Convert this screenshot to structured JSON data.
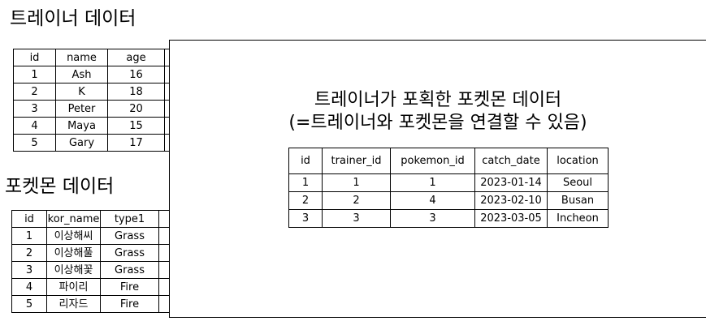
{
  "trainer": {
    "heading": "트레이너 데이터",
    "columns": [
      "id",
      "name",
      "age",
      ""
    ],
    "rows": [
      [
        "1",
        "Ash",
        "16",
        ""
      ],
      [
        "2",
        "K",
        "18",
        ""
      ],
      [
        "3",
        "Peter",
        "20",
        ""
      ],
      [
        "4",
        "Maya",
        "15",
        ""
      ],
      [
        "5",
        "Gary",
        "17",
        ""
      ]
    ]
  },
  "pokemon": {
    "heading": "포켓몬 데이터",
    "columns": [
      "id",
      "kor_name",
      "type1",
      ""
    ],
    "rows": [
      [
        "1",
        "이상해씨",
        "Grass",
        ""
      ],
      [
        "2",
        "이상해풀",
        "Grass",
        ""
      ],
      [
        "3",
        "이상해꽃",
        "Grass",
        ""
      ],
      [
        "4",
        "파이리",
        "Fire",
        ""
      ],
      [
        "5",
        "리자드",
        "Fire",
        ""
      ]
    ]
  },
  "capture": {
    "title_line1": "트레이너가 포획한 포켓몬 데이터",
    "title_line2": "(=트레이너와 포켓몬을 연결할 수 있음)",
    "columns": [
      "id",
      "trainer_id",
      "pokemon_id",
      "catch_date",
      "location"
    ],
    "rows": [
      [
        "1",
        "1",
        "1",
        "2023-01-14",
        "Seoul"
      ],
      [
        "2",
        "2",
        "4",
        "2023-02-10",
        "Busan"
      ],
      [
        "3",
        "3",
        "3",
        "2023-03-05",
        "Incheon"
      ]
    ]
  }
}
